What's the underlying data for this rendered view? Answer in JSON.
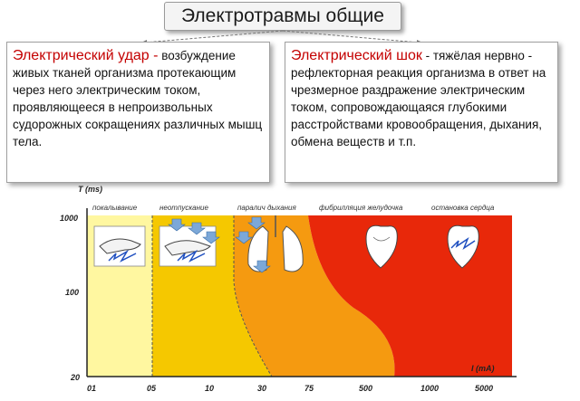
{
  "title": "Электротравмы общие",
  "left_card": {
    "heading": "Электрический удар -",
    "body": "возбуждение живых тканей организма протекающим через него электрическим током, проявляющееся в непроизвольных судорожных сокращениях различных мышц тела."
  },
  "right_card": {
    "heading": "Электрический шок",
    "body": " - тяжёлая нервно - рефлекторная реакция организма в ответ на чрезмерное раздражение электрическим током, сопровождающаяся глубокими расстройствами кровообращения, дыхания, обмена веществ и т.п."
  },
  "chart": {
    "y_title": "T (ms)",
    "x_title": "I (mA)",
    "y_ticks": [
      "1000",
      "100",
      "20"
    ],
    "x_ticks": [
      "01",
      "05",
      "10",
      "30",
      "75",
      "500",
      "1000",
      "5000"
    ],
    "zones": [
      "покалывание",
      "неотпускание",
      "паралич дыхания",
      "фибрилляция желудочка",
      "остановка сердца"
    ]
  },
  "colors": {
    "zone1": "#fff7a0",
    "zone2": "#f5c800",
    "zone3": "#f59a10",
    "zone4": "#e8280a",
    "title_accent": "#c40000"
  }
}
